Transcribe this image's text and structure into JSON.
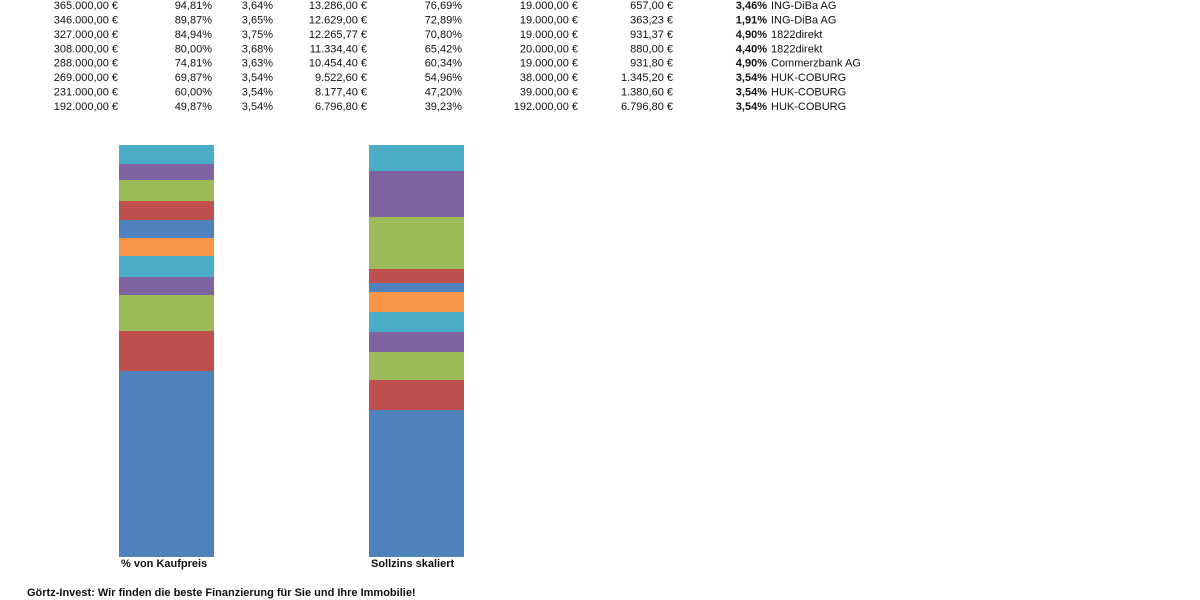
{
  "table": {
    "rows": [
      [
        "365.000,00 €",
        "94,81%",
        "3,64%",
        "13.286,00 €",
        "76,69%",
        "19.000,00 €",
        "657,00 €",
        "3,46%",
        "ING-DiBa AG"
      ],
      [
        "346.000,00 €",
        "89,87%",
        "3,65%",
        "12.629,00 €",
        "72,89%",
        "19.000,00 €",
        "363,23 €",
        "1,91%",
        "ING-DiBa AG"
      ],
      [
        "327.000,00 €",
        "84,94%",
        "3,75%",
        "12.265,77 €",
        "70,80%",
        "19.000,00 €",
        "931,37 €",
        "4,90%",
        "1822direkt"
      ],
      [
        "308.000,00 €",
        "80,00%",
        "3,68%",
        "11.334,40 €",
        "65,42%",
        "20.000,00 €",
        "880,00 €",
        "4,40%",
        "1822direkt"
      ],
      [
        "288.000,00 €",
        "74,81%",
        "3,63%",
        "10.454,40 €",
        "60,34%",
        "19.000,00 €",
        "931,80 €",
        "4,90%",
        "Commerzbank AG"
      ],
      [
        "269.000,00 €",
        "69,87%",
        "3,54%",
        "9.522,60 €",
        "54,96%",
        "38.000,00 €",
        "1.345,20 €",
        "3,54%",
        "HUK-COBURG"
      ],
      [
        "231.000,00 €",
        "60,00%",
        "3,54%",
        "8.177,40 €",
        "47,20%",
        "39.000,00 €",
        "1.380,60 €",
        "3,54%",
        "HUK-COBURG"
      ],
      [
        "192.000,00 €",
        "49,87%",
        "3,54%",
        "6.796,80 €",
        "39,23%",
        "192.000,00 €",
        "6.796,80 €",
        "3,54%",
        "HUK-COBURG"
      ]
    ]
  },
  "chart_data": {
    "type": "bar",
    "stacked": true,
    "categories": [
      "% von Kaufpreis",
      "Sollzins skaliert"
    ],
    "series": [
      {
        "color": "#4f81bd",
        "values": [
          186,
          147
        ]
      },
      {
        "color": "#c0504d",
        "values": [
          40,
          30
        ]
      },
      {
        "color": "#9bbb59",
        "values": [
          36,
          28
        ]
      },
      {
        "color": "#8064a2",
        "values": [
          18,
          20
        ]
      },
      {
        "color": "#4bacc6",
        "values": [
          21,
          20
        ]
      },
      {
        "color": "#f79646",
        "values": [
          18,
          20
        ]
      },
      {
        "color": "#4f81bd",
        "values": [
          18,
          9
        ]
      },
      {
        "color": "#c0504d",
        "values": [
          19,
          14
        ]
      },
      {
        "color": "#9bbb59",
        "values": [
          21,
          52
        ]
      },
      {
        "color": "#8064a2",
        "values": [
          16,
          46
        ]
      },
      {
        "color": "#4bacc6",
        "values": [
          19,
          26
        ]
      }
    ]
  },
  "footer": "Görtz-Invest: Wir finden die beste Finanzierung für Sie und Ihre Immobilie!"
}
